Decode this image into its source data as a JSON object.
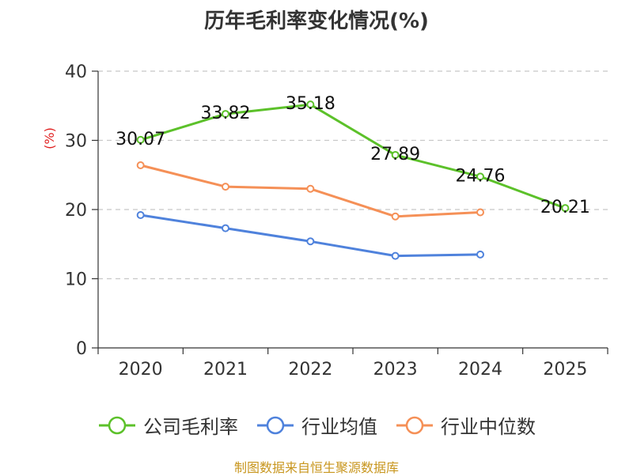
{
  "chart_data": {
    "type": "line",
    "title": "历年毛利率变化情况(%)",
    "ylabel": "(%)",
    "xlabel": "",
    "ylim": [
      0,
      40
    ],
    "yticks": [
      0,
      10,
      20,
      30,
      40
    ],
    "categories": [
      "2020",
      "2021",
      "2022",
      "2023",
      "2024",
      "2025"
    ],
    "grid": "horizontal-dashed",
    "legend_position": "bottom",
    "series": [
      {
        "name": "公司毛利率",
        "color": "#5cc12a",
        "show_labels": true,
        "values": [
          30.07,
          33.82,
          35.18,
          27.89,
          24.76,
          20.21
        ]
      },
      {
        "name": "行业均值",
        "color": "#4f82dc",
        "show_labels": false,
        "values": [
          19.2,
          17.3,
          15.4,
          13.3,
          13.5,
          null
        ]
      },
      {
        "name": "行业中位数",
        "color": "#f59057",
        "show_labels": false,
        "values": [
          26.4,
          23.3,
          23.0,
          19.0,
          19.6,
          null
        ]
      }
    ],
    "source_note": "制图数据来自恒生聚源数据库"
  }
}
